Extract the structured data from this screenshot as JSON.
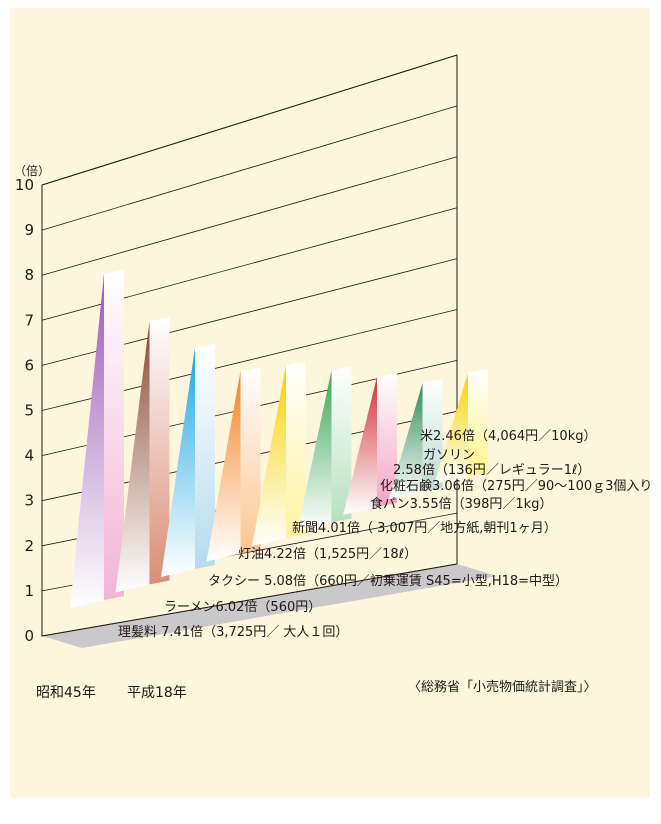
{
  "chart_data": {
    "type": "bar",
    "ylabel": "（倍）",
    "ylim": [
      0,
      10
    ],
    "yticks": [
      0,
      1,
      2,
      3,
      4,
      5,
      6,
      7,
      8,
      9,
      10
    ],
    "legend_start": "昭和45年",
    "legend_end": "平成18年",
    "source": "〈総務省「小売物価統計調査」〉",
    "series": [
      {
        "item": "理髪料",
        "value": 7.41,
        "label": "理髪料 7.41倍（3,725円／ 大人１回）",
        "color_dark": "#9b59b6",
        "color_face": "#f3b3d6"
      },
      {
        "item": "ラーメン",
        "value": 6.02,
        "label": "ラーメン6.02倍（560円）",
        "color_dark": "#8b4a35",
        "color_face": "#d98d76"
      },
      {
        "item": "タクシー",
        "value": 5.08,
        "label": "タクシー 5.08倍（660円／初乗運賃 S45=小型,H18=中型）",
        "color_dark": "#1aa7e0",
        "color_face": "#b4dbef"
      },
      {
        "item": "灯油",
        "value": 4.22,
        "label": "灯油4.22倍（1,525円／18ℓ）",
        "color_dark": "#f5821f",
        "color_face": "#fbc58f"
      },
      {
        "item": "新聞",
        "value": 4.01,
        "label": "新聞4.01倍（ 3,007円／地方紙,朝刊1ヶ月）",
        "color_dark": "#f7d100",
        "color_face": "#fff3a0"
      },
      {
        "item": "食パン",
        "value": 3.55,
        "label": "食パン3.55倍（398円／1kg）",
        "color_dark": "#3aa655",
        "color_face": "#b7e0bf"
      },
      {
        "item": "化粧石鹸",
        "value": 3.06,
        "label": "化粧石鹸3.06倍（275円／90〜100ｇ3個入り）",
        "color_dark": "#d4303a",
        "color_face": "#f5a3c4"
      },
      {
        "item": "ガソリン",
        "value": 2.58,
        "label_line1": "ガソリン",
        "label": "2.58倍（136円／レギュラー1ℓ）",
        "color_dark": "#2e8b57",
        "color_face": "#b9dcd2"
      },
      {
        "item": "米",
        "value": 2.46,
        "label": "米2.46倍（4,064円／10kg）",
        "color_dark": "#f3d400",
        "color_face": "#fff58a"
      }
    ]
  }
}
